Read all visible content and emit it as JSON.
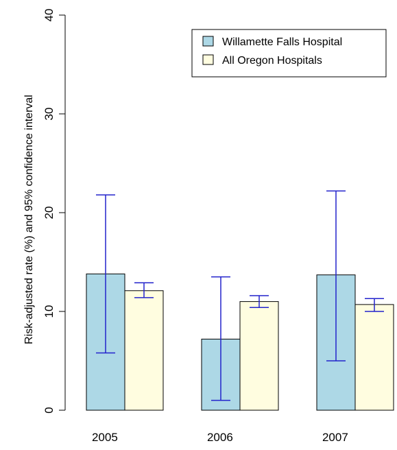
{
  "chart_data": {
    "type": "bar",
    "title": "",
    "xlabel": "",
    "ylabel": "Risk-adjusted rate (%) and 95% confidence interval",
    "categories": [
      "2005",
      "2006",
      "2007"
    ],
    "ylim": [
      0,
      40
    ],
    "yticks": [
      0,
      10,
      20,
      30,
      40
    ],
    "grid": false,
    "legend_position": "top-right",
    "error_bar_color": "#2222cc",
    "series": [
      {
        "name": "Willamette Falls Hospital",
        "color": "#add8e6",
        "values": [
          13.8,
          7.2,
          13.7
        ],
        "ci_low": [
          5.8,
          1.0,
          5.0
        ],
        "ci_high": [
          21.8,
          13.5,
          22.2
        ]
      },
      {
        "name": "All Oregon Hospitals",
        "color": "#fffde0",
        "values": [
          12.1,
          11.0,
          10.7
        ],
        "ci_low": [
          11.4,
          10.4,
          10.0
        ],
        "ci_high": [
          12.9,
          11.6,
          11.3
        ]
      }
    ]
  }
}
